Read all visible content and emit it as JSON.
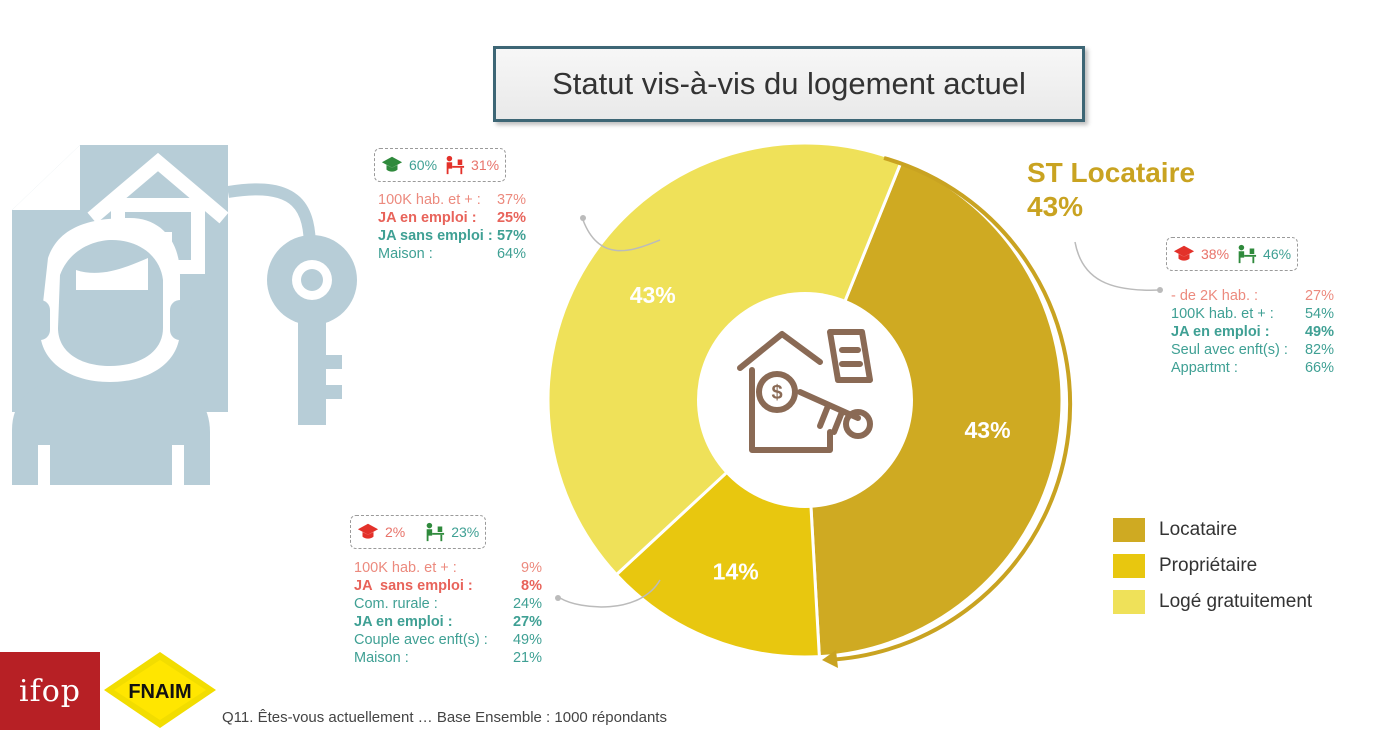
{
  "title": "Statut vis-à-vis du logement actuel",
  "chart_data": {
    "type": "pie",
    "categories": [
      "Locataire",
      "Propriétaire",
      "Logé gratuitement"
    ],
    "values": [
      43,
      14,
      43
    ],
    "data_labels": [
      "43%",
      "14%",
      "43%"
    ],
    "colors": [
      "#cfaa22",
      "#e8c70f",
      "#efe159"
    ],
    "legend_position": "right"
  },
  "st_locataire": {
    "label": "ST Locataire",
    "value": "43%"
  },
  "callouts": {
    "loge_gratuitement": {
      "icon_left": "graduation-cap-icon",
      "pct_left": "60%",
      "icon_right": "worker-desk-icon",
      "pct_right": "31%",
      "rows": [
        {
          "k": "100K hab. et + :",
          "v": "37%",
          "style": "salmon"
        },
        {
          "k": "JA en emploi :",
          "v": "25%",
          "style": "red"
        },
        {
          "k": "JA sans emploi :",
          "v": "57%",
          "style": "teal-b"
        },
        {
          "k": "Maison :",
          "v": "64%",
          "style": "teal"
        }
      ]
    },
    "locataire": {
      "icon_left": "graduation-cap-icon",
      "pct_left": "38%",
      "icon_right": "worker-desk-icon",
      "pct_right": "46%",
      "rows": [
        {
          "k": "- de 2K hab. :",
          "v": "27%",
          "style": "salmon"
        },
        {
          "k": "100K hab. et + :",
          "v": "54%",
          "style": "teal"
        },
        {
          "k": "JA en emploi :",
          "v": "49%",
          "style": "teal-b"
        },
        {
          "k": "Seul avec enft(s) :",
          "v": "82%",
          "style": "teal"
        },
        {
          "k": "Appartmt :",
          "v": "66%",
          "style": "teal"
        }
      ]
    },
    "proprietaire": {
      "icon_left": "graduation-cap-icon",
      "pct_left": "2%",
      "icon_right": "worker-desk-icon",
      "pct_right": "23%",
      "rows": [
        {
          "k": "100K hab. et + :",
          "v": "9%",
          "style": "salmon"
        },
        {
          "k": "JA  sans emploi :",
          "v": "8%",
          "style": "red"
        },
        {
          "k": "Com. rurale :",
          "v": "24%",
          "style": "teal"
        },
        {
          "k": "JA en emploi :",
          "v": "27%",
          "style": "teal-b"
        },
        {
          "k": "Couple avec enft(s) :",
          "v": "49%",
          "style": "teal"
        },
        {
          "k": "Maison :",
          "v": "21%",
          "style": "teal"
        }
      ]
    }
  },
  "legend": [
    {
      "label": "Locataire",
      "color": "#cfaa22"
    },
    {
      "label": "Propriétaire",
      "color": "#e8c70f"
    },
    {
      "label": "Logé gratuitement",
      "color": "#efe159"
    }
  ],
  "logos": {
    "ifop": "ifop",
    "fnaim": "FNAIM"
  },
  "footnote": "Q11. Êtes-vous actuellement … Base Ensemble : 1000 répondants"
}
